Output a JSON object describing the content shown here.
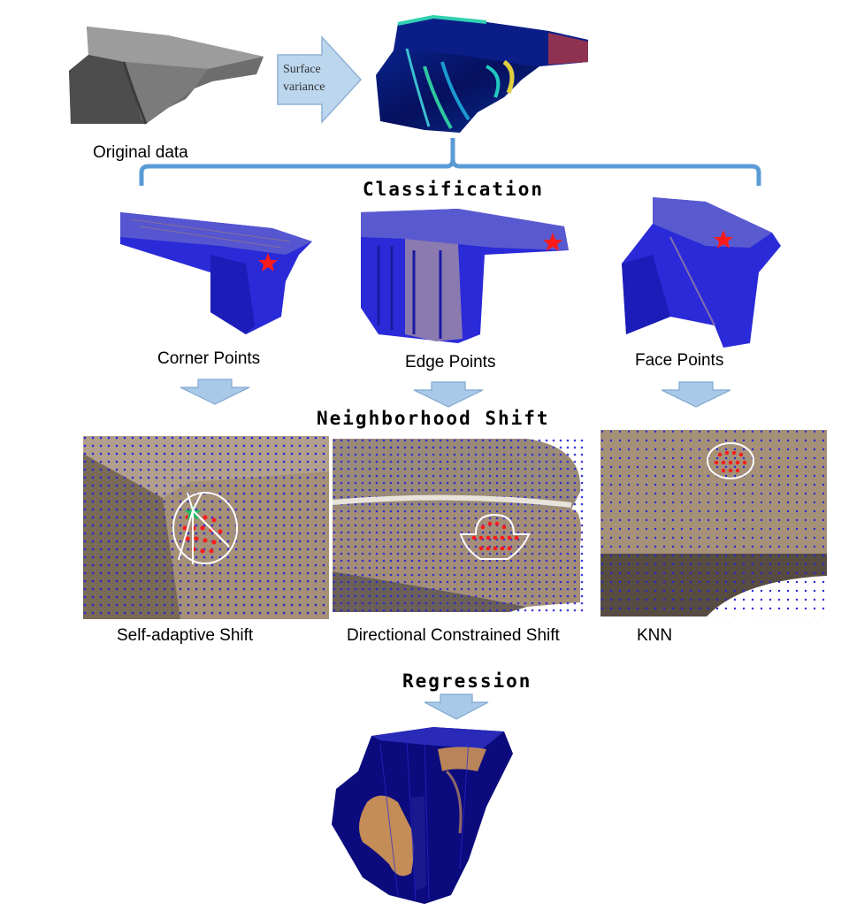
{
  "top": {
    "original_label": "Original data",
    "arrow_label_line1": "Surface",
    "arrow_label_line2": "variance"
  },
  "sections": {
    "classification": "Classification",
    "neighborhood": "Neighborhood Shift",
    "regression": "Regression"
  },
  "classes": [
    {
      "label": "Corner Points"
    },
    {
      "label": "Edge Points"
    },
    {
      "label": "Face Points"
    }
  ],
  "shifts": [
    {
      "label": "Self-adaptive Shift"
    },
    {
      "label": "Directional Constrained Shift"
    },
    {
      "label": "KNN"
    }
  ],
  "colors": {
    "arrow_fill": "#a9c9e8",
    "arrow_stroke": "#7fa7cf",
    "bracket": "#5b9bd5",
    "point_blue": "#2424d8",
    "surface_tan": "#a69079",
    "marker_red": "#ff1a1a"
  }
}
